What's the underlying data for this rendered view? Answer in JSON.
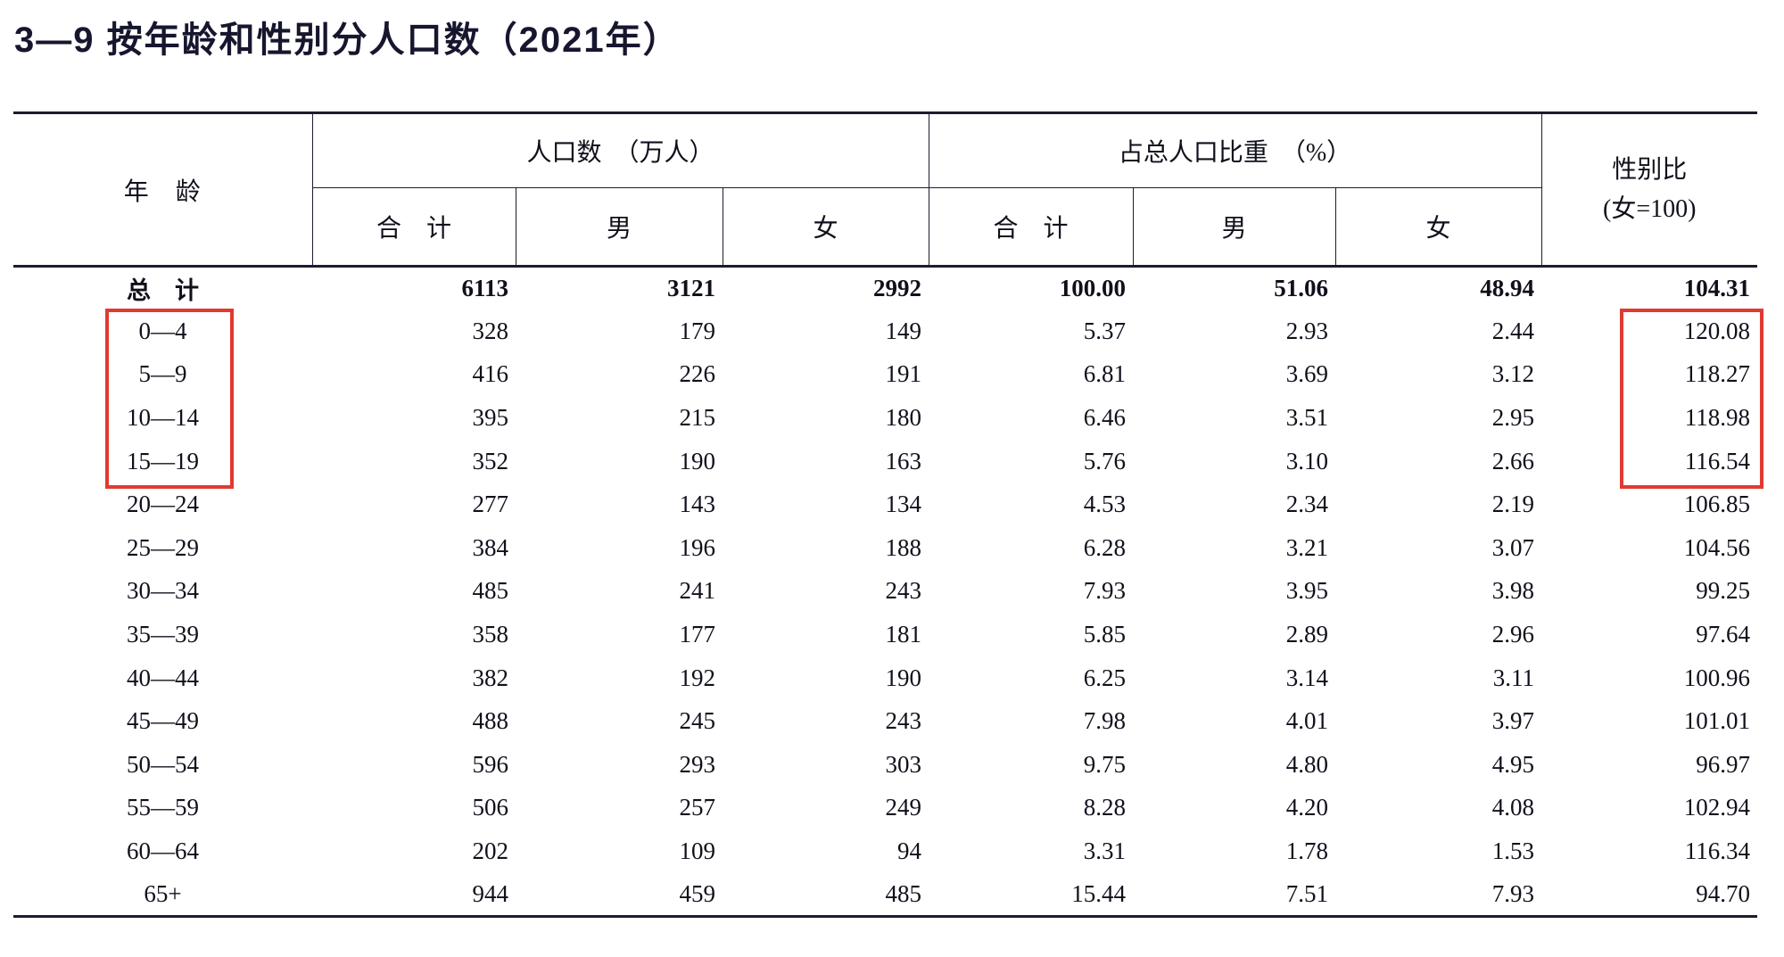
{
  "page": {
    "background": "#ffffff"
  },
  "title": "3—9  按年龄和性别分人口数（2021年）",
  "table": {
    "header": {
      "age": "年　龄",
      "group_population": "人口数　（万人）",
      "group_share": "占总人口比重　（%）",
      "ratio_line1": "性别比",
      "ratio_line2": "(女=100)",
      "sub": [
        "合　计",
        "男",
        "女",
        "合　计",
        "男",
        "女"
      ]
    },
    "rows": [
      {
        "age": "总　计",
        "values": [
          "6113",
          "3121",
          "2992",
          "100.00",
          "51.06",
          "48.94",
          "104.31"
        ],
        "bold": true
      },
      {
        "age": "0—4",
        "values": [
          "328",
          "179",
          "149",
          "5.37",
          "2.93",
          "2.44",
          "120.08"
        ]
      },
      {
        "age": "5—9",
        "values": [
          "416",
          "226",
          "191",
          "6.81",
          "3.69",
          "3.12",
          "118.27"
        ]
      },
      {
        "age": "10—14",
        "values": [
          "395",
          "215",
          "180",
          "6.46",
          "3.51",
          "2.95",
          "118.98"
        ]
      },
      {
        "age": "15—19",
        "values": [
          "352",
          "190",
          "163",
          "5.76",
          "3.10",
          "2.66",
          "116.54"
        ]
      },
      {
        "age": "20—24",
        "values": [
          "277",
          "143",
          "134",
          "4.53",
          "2.34",
          "2.19",
          "106.85"
        ]
      },
      {
        "age": "25—29",
        "values": [
          "384",
          "196",
          "188",
          "6.28",
          "3.21",
          "3.07",
          "104.56"
        ]
      },
      {
        "age": "30—34",
        "values": [
          "485",
          "241",
          "243",
          "7.93",
          "3.95",
          "3.98",
          "99.25"
        ]
      },
      {
        "age": "35—39",
        "values": [
          "358",
          "177",
          "181",
          "5.85",
          "2.89",
          "2.96",
          "97.64"
        ]
      },
      {
        "age": "40—44",
        "values": [
          "382",
          "192",
          "190",
          "6.25",
          "3.14",
          "3.11",
          "100.96"
        ]
      },
      {
        "age": "45—49",
        "values": [
          "488",
          "245",
          "243",
          "7.98",
          "4.01",
          "3.97",
          "101.01"
        ]
      },
      {
        "age": "50—54",
        "values": [
          "596",
          "293",
          "303",
          "9.75",
          "4.80",
          "4.95",
          "96.97"
        ]
      },
      {
        "age": "55—59",
        "values": [
          "506",
          "257",
          "249",
          "8.28",
          "4.20",
          "4.08",
          "102.94"
        ]
      },
      {
        "age": "60—64",
        "values": [
          "202",
          "109",
          "94",
          "3.31",
          "1.78",
          "1.53",
          "116.34"
        ]
      },
      {
        "age": "65+",
        "values": [
          "944",
          "459",
          "485",
          "15.44",
          "7.51",
          "7.93",
          "94.70"
        ]
      }
    ]
  },
  "annotations": {
    "highlight_color": "#e03a31",
    "highlights": [
      "age-rows-0-4-to-15-19",
      "sex-ratio-values-0-4-to-15-19"
    ]
  }
}
